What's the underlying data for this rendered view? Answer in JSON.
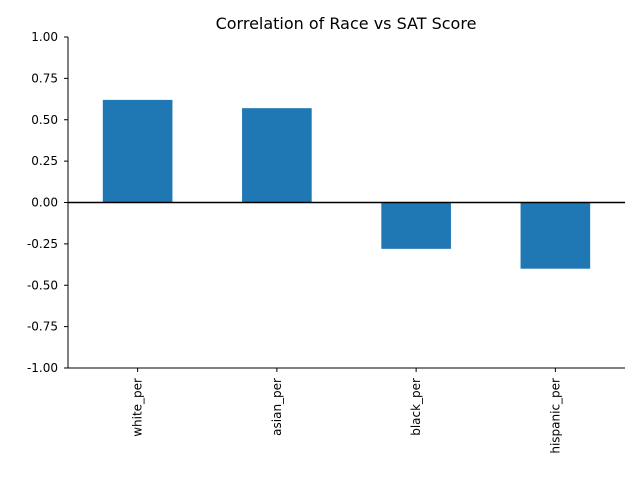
{
  "chart_data": {
    "type": "bar",
    "title": "Correlation of Race vs SAT Score",
    "xlabel": "",
    "ylabel": "",
    "categories": [
      "white_per",
      "asian_per",
      "black_per",
      "hispanic_per"
    ],
    "values": [
      0.62,
      0.57,
      -0.28,
      -0.4
    ],
    "ylim": [
      -1.0,
      1.0
    ],
    "yticks": [
      "-1.00",
      "-0.75",
      "-0.50",
      "-0.25",
      "0.00",
      "0.25",
      "0.50",
      "0.75",
      "1.00"
    ],
    "bar_color": "#1f77b4",
    "zero_line": true,
    "grid": false,
    "legend": "none"
  }
}
